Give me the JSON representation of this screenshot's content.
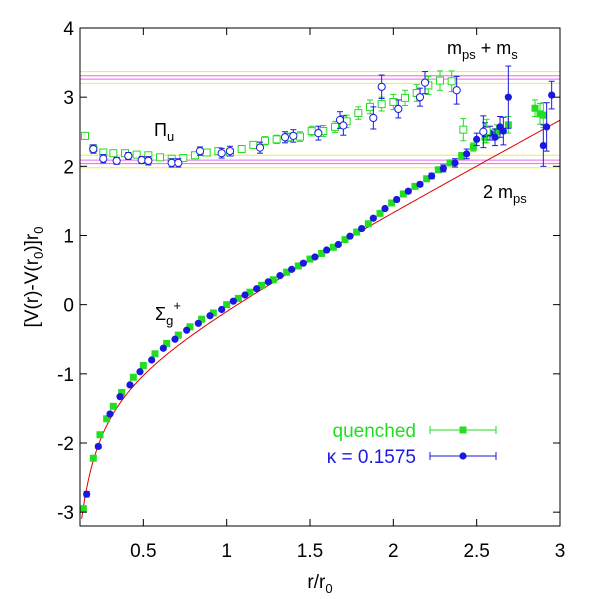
{
  "chart_data": {
    "type": "scatter",
    "xlim": [
      0.12,
      3.0
    ],
    "ylim": [
      -3.2,
      4.0
    ],
    "xticks": [
      0.5,
      1,
      1.5,
      2,
      2.5,
      3
    ],
    "xtick_labels": [
      "0.5",
      "1",
      "1.5",
      "2",
      "2.5",
      "3"
    ],
    "yticks": [
      -3,
      -2,
      -1,
      0,
      1,
      2,
      3,
      4
    ],
    "ytick_labels": [
      "-3",
      "-2",
      "-1",
      "0",
      "1",
      "2",
      "3",
      "4"
    ],
    "xlabel": {
      "base": "r/r",
      "sub": "0"
    },
    "ylabel": {
      "main": "[V(r)-V(r",
      "sub1": "0",
      "mid": ")]r",
      "sub2": "0"
    },
    "grid": false,
    "legend_position": "bottom-right",
    "colors": {
      "quenched": "#22dd22",
      "kappa": "#1a1adf",
      "fit": "#dd0000",
      "band_edge": "#eeee44",
      "band_mid": "#ee66ee"
    },
    "annotations": {
      "pi_u": {
        "sym": "Π",
        "sub": "u"
      },
      "sigma_g": {
        "sym": "Σ",
        "sub": "g",
        "sup": "+"
      },
      "two_mps": {
        "main": "2 m",
        "sub": "ps"
      },
      "mps_ms": {
        "m1": "m",
        "s1": "ps",
        "plus": " + m",
        "s2": "s"
      }
    },
    "bands": [
      {
        "name": "2 m_ps",
        "lines": [
          {
            "y": 1.98,
            "color": "band_edge"
          },
          {
            "y": 2.04,
            "color": "band_mid"
          },
          {
            "y": 2.09,
            "color": "band_mid"
          },
          {
            "y": 2.16,
            "color": "band_edge"
          }
        ]
      },
      {
        "name": "m_ps + m_s",
        "lines": [
          {
            "y": 3.2,
            "color": "band_edge"
          },
          {
            "y": 3.26,
            "color": "band_mid"
          },
          {
            "y": 3.31,
            "color": "band_mid"
          },
          {
            "y": 3.37,
            "color": "band_edge"
          }
        ]
      }
    ],
    "fit_curve": {
      "form": "a/r + b + s*r",
      "a": -0.28,
      "b": -1.11,
      "s": 1.29,
      "x_range": [
        0.13,
        3.0
      ]
    },
    "series": [
      {
        "name": "quenched",
        "state": "Sigma_g+",
        "marker": "filled-square",
        "color": "quenched",
        "points": [
          [
            0.14,
            -2.95,
            0.03
          ],
          [
            0.2,
            -2.22,
            0.02
          ],
          [
            0.24,
            -1.88,
            0.02
          ],
          [
            0.28,
            -1.65,
            0.02
          ],
          [
            0.32,
            -1.47,
            0.02
          ],
          [
            0.37,
            -1.27,
            0.02
          ],
          [
            0.44,
            -1.05,
            0.02
          ],
          [
            0.5,
            -0.88,
            0.02
          ],
          [
            0.57,
            -0.71,
            0.02
          ],
          [
            0.64,
            -0.56,
            0.02
          ],
          [
            0.71,
            -0.44,
            0.02
          ],
          [
            0.78,
            -0.32,
            0.02
          ],
          [
            0.85,
            -0.21,
            0.02
          ],
          [
            0.92,
            -0.12,
            0.02
          ],
          [
            1.0,
            0.0,
            0.02
          ],
          [
            1.07,
            0.09,
            0.02
          ],
          [
            1.14,
            0.18,
            0.02
          ],
          [
            1.21,
            0.28,
            0.02
          ],
          [
            1.28,
            0.36,
            0.02
          ],
          [
            1.36,
            0.47,
            0.02
          ],
          [
            1.43,
            0.56,
            0.02
          ],
          [
            1.5,
            0.66,
            0.02
          ],
          [
            1.57,
            0.74,
            0.02
          ],
          [
            1.64,
            0.83,
            0.02
          ],
          [
            1.71,
            0.94,
            0.02
          ],
          [
            1.78,
            1.05,
            0.02
          ],
          [
            1.85,
            1.17,
            0.02
          ],
          [
            1.92,
            1.32,
            0.02
          ],
          [
            1.99,
            1.47,
            0.02
          ],
          [
            2.06,
            1.6,
            0.03
          ],
          [
            2.13,
            1.71,
            0.03
          ],
          [
            2.2,
            1.82,
            0.03
          ],
          [
            2.27,
            1.95,
            0.03
          ],
          [
            2.34,
            2.05,
            0.04
          ],
          [
            2.41,
            2.15,
            0.05
          ],
          [
            2.48,
            2.28,
            0.06
          ],
          [
            2.55,
            2.42,
            0.08
          ],
          [
            2.62,
            2.5,
            0.1
          ],
          [
            2.69,
            2.6,
            0.12
          ],
          [
            2.85,
            2.84,
            0.12
          ],
          [
            2.88,
            2.76,
            0.15
          ],
          [
            2.9,
            2.74,
            0.18
          ]
        ]
      },
      {
        "name": "κ = 0.1575",
        "state": "Sigma_g+",
        "marker": "filled-circle",
        "color": "kappa",
        "points": [
          [
            0.16,
            -2.74,
            0.04
          ],
          [
            0.23,
            -2.05,
            0.03
          ],
          [
            0.3,
            -1.58,
            0.02
          ],
          [
            0.36,
            -1.33,
            0.02
          ],
          [
            0.42,
            -1.16,
            0.02
          ],
          [
            0.48,
            -0.97,
            0.02
          ],
          [
            0.55,
            -0.8,
            0.02
          ],
          [
            0.62,
            -0.63,
            0.02
          ],
          [
            0.69,
            -0.5,
            0.02
          ],
          [
            0.76,
            -0.37,
            0.02
          ],
          [
            0.83,
            -0.27,
            0.02
          ],
          [
            0.9,
            -0.16,
            0.02
          ],
          [
            0.97,
            -0.07,
            0.02
          ],
          [
            1.04,
            0.05,
            0.02
          ],
          [
            1.11,
            0.14,
            0.02
          ],
          [
            1.18,
            0.23,
            0.02
          ],
          [
            1.25,
            0.33,
            0.02
          ],
          [
            1.32,
            0.42,
            0.02
          ],
          [
            1.39,
            0.51,
            0.02
          ],
          [
            1.46,
            0.6,
            0.02
          ],
          [
            1.53,
            0.69,
            0.02
          ],
          [
            1.6,
            0.79,
            0.02
          ],
          [
            1.67,
            0.87,
            0.02
          ],
          [
            1.74,
            0.99,
            0.02
          ],
          [
            1.81,
            1.1,
            0.02
          ],
          [
            1.88,
            1.25,
            0.02
          ],
          [
            1.95,
            1.39,
            0.02
          ],
          [
            2.02,
            1.52,
            0.03
          ],
          [
            2.09,
            1.64,
            0.03
          ],
          [
            2.16,
            1.74,
            0.03
          ],
          [
            2.23,
            1.86,
            0.04
          ],
          [
            2.3,
            1.97,
            0.05
          ],
          [
            2.37,
            2.05,
            0.06
          ],
          [
            2.44,
            2.18,
            0.07
          ],
          [
            2.5,
            2.39,
            0.09
          ],
          [
            2.55,
            2.53,
            0.1
          ],
          [
            2.58,
            2.48,
            0.1
          ],
          [
            2.61,
            2.42,
            0.12
          ],
          [
            2.64,
            2.57,
            0.15
          ],
          [
            2.66,
            2.51,
            0.2
          ],
          [
            2.69,
            3.0,
            0.45
          ],
          [
            2.9,
            2.3,
            0.3
          ],
          [
            2.92,
            2.57,
            0.35
          ],
          [
            2.95,
            3.03,
            0.2
          ]
        ]
      },
      {
        "name": "quenched",
        "state": "Pi_u",
        "marker": "open-square",
        "color": "quenched",
        "points": [
          [
            0.15,
            2.44,
            0.05
          ],
          [
            0.2,
            2.26,
            0.04
          ],
          [
            0.26,
            2.2,
            0.04
          ],
          [
            0.32,
            2.19,
            0.04
          ],
          [
            0.39,
            2.19,
            0.04
          ],
          [
            0.46,
            2.17,
            0.04
          ],
          [
            0.53,
            2.16,
            0.04
          ],
          [
            0.6,
            2.13,
            0.04
          ],
          [
            0.67,
            2.11,
            0.04
          ],
          [
            0.74,
            2.12,
            0.04
          ],
          [
            0.81,
            2.16,
            0.05
          ],
          [
            0.88,
            2.2,
            0.05
          ],
          [
            0.95,
            2.22,
            0.05
          ],
          [
            1.02,
            2.2,
            0.05
          ],
          [
            1.09,
            2.25,
            0.05
          ],
          [
            1.16,
            2.31,
            0.05
          ],
          [
            1.23,
            2.37,
            0.06
          ],
          [
            1.3,
            2.39,
            0.06
          ],
          [
            1.37,
            2.42,
            0.06
          ],
          [
            1.44,
            2.43,
            0.07
          ],
          [
            1.51,
            2.51,
            0.07
          ],
          [
            1.58,
            2.51,
            0.08
          ],
          [
            1.65,
            2.57,
            0.08
          ],
          [
            1.72,
            2.65,
            0.09
          ],
          [
            1.79,
            2.77,
            0.09
          ],
          [
            1.86,
            2.86,
            0.1
          ],
          [
            1.93,
            2.9,
            0.1
          ],
          [
            2.0,
            2.93,
            0.11
          ],
          [
            2.07,
            2.99,
            0.11
          ],
          [
            2.14,
            3.06,
            0.12
          ],
          [
            2.21,
            3.17,
            0.13
          ],
          [
            2.28,
            3.24,
            0.14
          ],
          [
            2.35,
            3.23,
            0.15
          ],
          [
            2.42,
            2.53,
            0.16
          ],
          [
            2.56,
            2.51,
            0.17
          ]
        ]
      },
      {
        "name": "κ = 0.1575",
        "state": "Pi_u",
        "marker": "open-circle",
        "color": "kappa",
        "points": [
          [
            0.2,
            2.25,
            0.06
          ],
          [
            0.26,
            2.11,
            0.06
          ],
          [
            0.34,
            2.08,
            0.05
          ],
          [
            0.41,
            2.15,
            0.05
          ],
          [
            0.49,
            2.09,
            0.05
          ],
          [
            0.53,
            2.08,
            0.06
          ],
          [
            0.67,
            2.05,
            0.06
          ],
          [
            0.71,
            2.05,
            0.06
          ],
          [
            0.84,
            2.22,
            0.06
          ],
          [
            0.97,
            2.19,
            0.07
          ],
          [
            1.02,
            2.22,
            0.07
          ],
          [
            1.2,
            2.27,
            0.08
          ],
          [
            1.35,
            2.42,
            0.08
          ],
          [
            1.4,
            2.44,
            0.09
          ],
          [
            1.55,
            2.48,
            0.1
          ],
          [
            1.68,
            2.67,
            0.12
          ],
          [
            1.7,
            2.59,
            0.14
          ],
          [
            1.88,
            2.7,
            0.16
          ],
          [
            1.93,
            3.15,
            0.17
          ],
          [
            2.03,
            2.83,
            0.13
          ],
          [
            2.16,
            3.0,
            0.13
          ],
          [
            2.19,
            3.21,
            0.16
          ],
          [
            2.38,
            3.1,
            0.2
          ],
          [
            2.54,
            2.5,
            0.23
          ]
        ]
      }
    ],
    "legend": [
      {
        "label": "quenched",
        "color": "quenched",
        "marker": "filled-square"
      },
      {
        "label": "κ = 0.1575",
        "color": "kappa",
        "marker": "filled-circle"
      }
    ]
  }
}
